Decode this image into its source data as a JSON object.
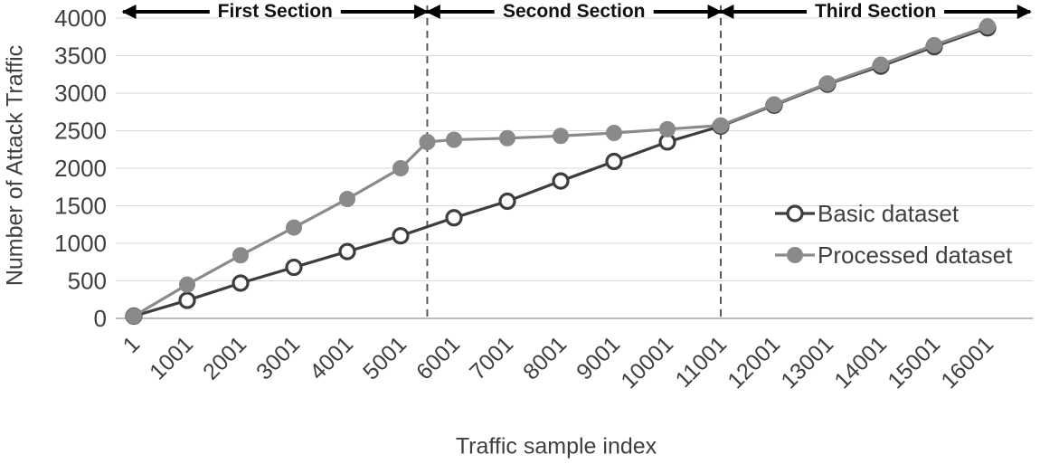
{
  "chart_data": {
    "type": "line",
    "title": "",
    "xlabel": "Traffic sample index",
    "ylabel": "Number of Attack Traffic",
    "ylim": [
      0,
      4000
    ],
    "y_ticks": [
      0,
      500,
      1000,
      1500,
      2000,
      2500,
      3000,
      3500,
      4000
    ],
    "x_ticks": [
      1,
      1001,
      2001,
      3001,
      4001,
      5001,
      6001,
      7001,
      8001,
      9001,
      10001,
      11001,
      12001,
      13001,
      14001,
      15001,
      16001
    ],
    "grid": true,
    "legend_position": "inside-right",
    "series": [
      {
        "name": "Basic dataset",
        "color": "#3d3d3d",
        "marker": "open-circle",
        "x": [
          1,
          1001,
          2001,
          3001,
          4001,
          5001,
          6001,
          7001,
          8001,
          9001,
          10001,
          11001,
          12001,
          13001,
          14001,
          15001,
          16001
        ],
        "y": [
          30,
          240,
          470,
          680,
          890,
          1100,
          1340,
          1560,
          1830,
          2090,
          2350,
          2560,
          2840,
          3120,
          3360,
          3620,
          3870
        ]
      },
      {
        "name": "Processed dataset",
        "color": "#8a8a8a",
        "marker": "filled-circle",
        "x": [
          1,
          1001,
          2001,
          3001,
          4001,
          5001,
          5500,
          6001,
          7001,
          8001,
          9001,
          10001,
          11001,
          12001,
          13001,
          14001,
          15001,
          16001
        ],
        "y": [
          30,
          450,
          840,
          1210,
          1590,
          2000,
          2350,
          2380,
          2400,
          2430,
          2470,
          2520,
          2570,
          2850,
          3130,
          3380,
          3640,
          3890
        ]
      }
    ],
    "section_dividers": [
      5500,
      11001
    ],
    "sections": [
      {
        "label": "First Section",
        "from": -200,
        "to": 5500
      },
      {
        "label": "Second Section",
        "from": 5500,
        "to": 11001
      },
      {
        "label": "Third Section",
        "from": 11001,
        "to": 16800
      }
    ],
    "colors": {
      "grid": "#d9d9d9",
      "axis": "#a6a6a6",
      "divider": "#595959",
      "arrow": "#000000",
      "tick_text": "#3f3f3f"
    }
  }
}
